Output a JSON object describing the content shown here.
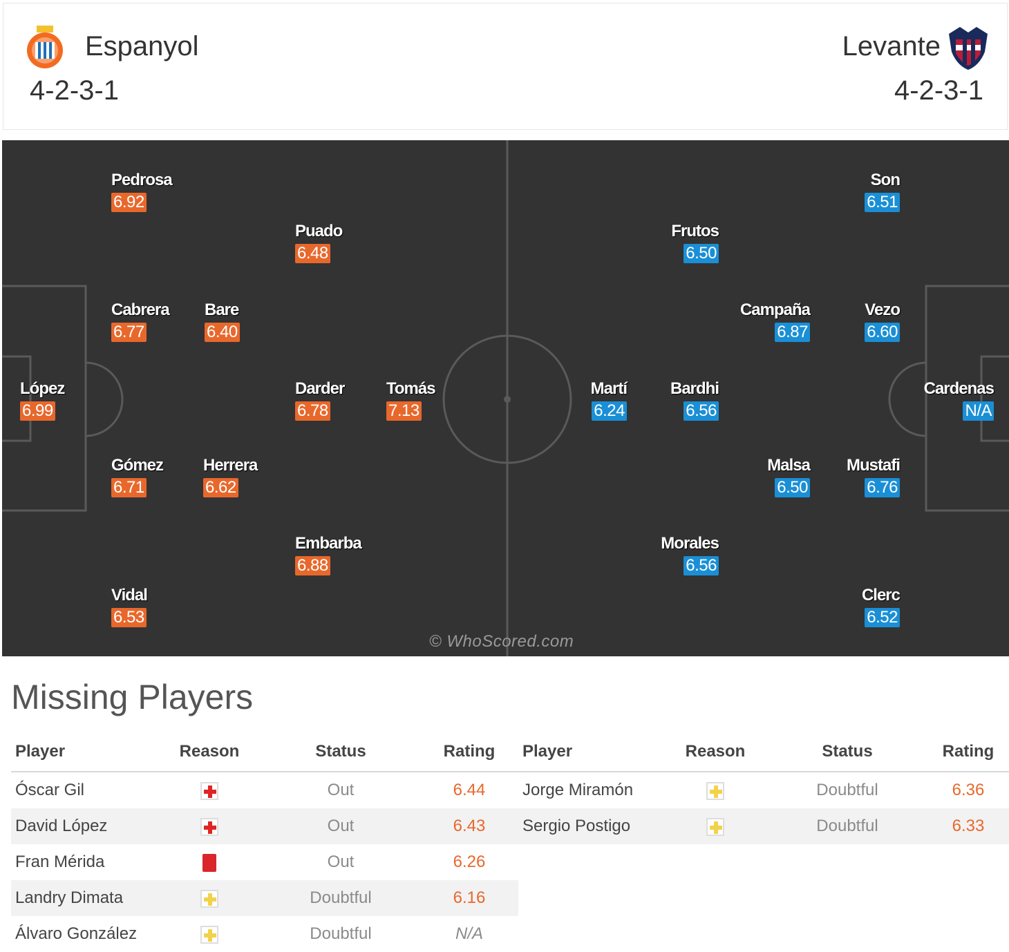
{
  "home": {
    "name": "Espanyol",
    "formation": "4-2-3-1",
    "rating_color": "#e8682c"
  },
  "away": {
    "name": "Levante",
    "formation": "4-2-3-1",
    "rating_color": "#1a8fd6"
  },
  "home_players": [
    {
      "name": "Pedrosa",
      "rating": "6.92"
    },
    {
      "name": "Puado",
      "rating": "6.48"
    },
    {
      "name": "Cabrera",
      "rating": "6.77"
    },
    {
      "name": "Bare",
      "rating": "6.40"
    },
    {
      "name": "López",
      "rating": "6.99"
    },
    {
      "name": "Darder",
      "rating": "6.78"
    },
    {
      "name": "Tomás",
      "rating": "7.13"
    },
    {
      "name": "Gómez",
      "rating": "6.71"
    },
    {
      "name": "Herrera",
      "rating": "6.62"
    },
    {
      "name": "Embarba",
      "rating": "6.88"
    },
    {
      "name": "Vidal",
      "rating": "6.53"
    }
  ],
  "away_players": [
    {
      "name": "Son",
      "rating": "6.51"
    },
    {
      "name": "Frutos",
      "rating": "6.50"
    },
    {
      "name": "Campaña",
      "rating": "6.87"
    },
    {
      "name": "Vezo",
      "rating": "6.60"
    },
    {
      "name": "Martí",
      "rating": "6.24"
    },
    {
      "name": "Bardhi",
      "rating": "6.56"
    },
    {
      "name": "Cardenas",
      "rating": "N/A"
    },
    {
      "name": "Malsa",
      "rating": "6.50"
    },
    {
      "name": "Mustafi",
      "rating": "6.76"
    },
    {
      "name": "Morales",
      "rating": "6.56"
    },
    {
      "name": "Clerc",
      "rating": "6.52"
    }
  ],
  "watermark": "© WhoScored.com",
  "missing": {
    "title": "Missing Players",
    "headers": {
      "player": "Player",
      "reason": "Reason",
      "status": "Status",
      "rating": "Rating"
    },
    "home": [
      {
        "player": "Óscar Gil",
        "reason_icon": "injury-icon",
        "status": "Out",
        "rating": "6.44"
      },
      {
        "player": "David López",
        "reason_icon": "injury-icon",
        "status": "Out",
        "rating": "6.43"
      },
      {
        "player": "Fran Mérida",
        "reason_icon": "red-card-icon",
        "status": "Out",
        "rating": "6.26"
      },
      {
        "player": "Landry Dimata",
        "reason_icon": "doubtful-icon",
        "status": "Doubtful",
        "rating": "6.16"
      },
      {
        "player": "Álvaro González",
        "reason_icon": "doubtful-icon",
        "status": "Doubtful",
        "rating": "N/A"
      }
    ],
    "away": [
      {
        "player": "Jorge Miramón",
        "reason_icon": "doubtful-icon",
        "status": "Doubtful",
        "rating": "6.36"
      },
      {
        "player": "Sergio Postigo",
        "reason_icon": "doubtful-icon",
        "status": "Doubtful",
        "rating": "6.33"
      }
    ]
  }
}
